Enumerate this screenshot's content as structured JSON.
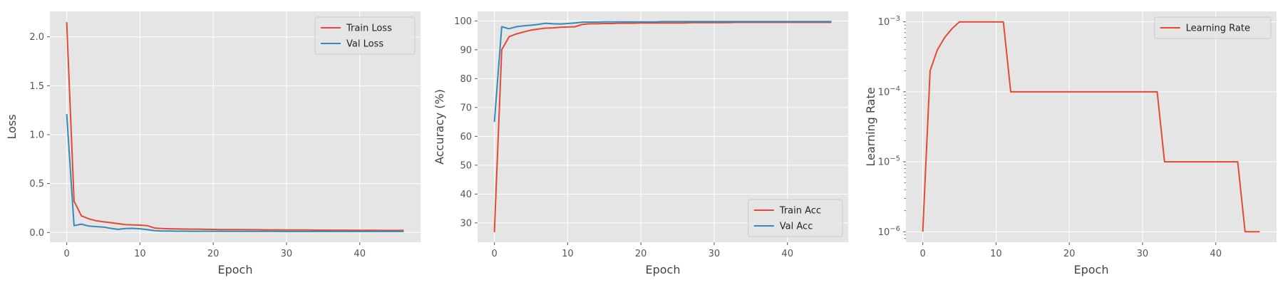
{
  "colors": {
    "red": "#e24a33",
    "blue": "#348abd",
    "plot_bg": "#e5e5e5",
    "grid": "#ffffff"
  },
  "chart_data": [
    {
      "type": "line",
      "xlabel": "Epoch",
      "ylabel": "Loss",
      "xlim": [
        -2.3,
        48.3
      ],
      "ylim": [
        -0.1,
        2.26
      ],
      "xticks": [
        0,
        10,
        20,
        30,
        40
      ],
      "xtick_labels": [
        "0",
        "10",
        "20",
        "30",
        "40"
      ],
      "yticks": [
        0.0,
        0.5,
        1.0,
        1.5,
        2.0
      ],
      "ytick_labels": [
        "0.0",
        "0.5",
        "1.0",
        "1.5",
        "2.0"
      ],
      "legend_position": "top-right",
      "x": [
        0,
        1,
        2,
        3,
        4,
        5,
        6,
        7,
        8,
        9,
        10,
        11,
        12,
        13,
        14,
        15,
        16,
        17,
        18,
        19,
        20,
        21,
        22,
        23,
        24,
        25,
        26,
        27,
        28,
        29,
        30,
        31,
        32,
        33,
        34,
        35,
        36,
        37,
        38,
        39,
        40,
        41,
        42,
        43,
        44,
        45,
        46
      ],
      "series": [
        {
          "name": "Train Loss",
          "color": "red",
          "values": [
            2.15,
            0.32,
            0.17,
            0.14,
            0.12,
            0.11,
            0.1,
            0.09,
            0.08,
            0.078,
            0.075,
            0.07,
            0.045,
            0.04,
            0.038,
            0.036,
            0.035,
            0.034,
            0.034,
            0.032,
            0.031,
            0.03,
            0.03,
            0.029,
            0.029,
            0.028,
            0.028,
            0.027,
            0.027,
            0.027,
            0.026,
            0.026,
            0.025,
            0.025,
            0.024,
            0.024,
            0.023,
            0.023,
            0.023,
            0.022,
            0.022,
            0.022,
            0.022,
            0.021,
            0.021,
            0.021,
            0.021
          ]
        },
        {
          "name": "Val Loss",
          "color": "blue",
          "values": [
            1.21,
            0.07,
            0.085,
            0.065,
            0.06,
            0.055,
            0.042,
            0.032,
            0.04,
            0.042,
            0.038,
            0.03,
            0.018,
            0.015,
            0.014,
            0.013,
            0.013,
            0.012,
            0.012,
            0.012,
            0.012,
            0.012,
            0.011,
            0.011,
            0.011,
            0.011,
            0.011,
            0.011,
            0.011,
            0.01,
            0.01,
            0.01,
            0.01,
            0.01,
            0.01,
            0.01,
            0.01,
            0.01,
            0.01,
            0.01,
            0.01,
            0.01,
            0.01,
            0.01,
            0.01,
            0.01,
            0.01
          ]
        }
      ]
    },
    {
      "type": "line",
      "xlabel": "Epoch",
      "ylabel": "Accuracy (%)",
      "xlim": [
        -2.3,
        48.3
      ],
      "ylim": [
        23.3,
        103.3
      ],
      "xticks": [
        0,
        10,
        20,
        30,
        40
      ],
      "xtick_labels": [
        "0",
        "10",
        "20",
        "30",
        "40"
      ],
      "yticks": [
        30,
        40,
        50,
        60,
        70,
        80,
        90,
        100
      ],
      "ytick_labels": [
        "30",
        "40",
        "50",
        "60",
        "70",
        "80",
        "90",
        "100"
      ],
      "legend_position": "bottom-right",
      "x": [
        0,
        1,
        2,
        3,
        4,
        5,
        6,
        7,
        8,
        9,
        10,
        11,
        12,
        13,
        14,
        15,
        16,
        17,
        18,
        19,
        20,
        21,
        22,
        23,
        24,
        25,
        26,
        27,
        28,
        29,
        30,
        31,
        32,
        33,
        34,
        35,
        36,
        37,
        38,
        39,
        40,
        41,
        42,
        43,
        44,
        45,
        46
      ],
      "series": [
        {
          "name": "Train Acc",
          "color": "red",
          "values": [
            26.8,
            90.0,
            94.5,
            95.5,
            96.2,
            96.8,
            97.2,
            97.5,
            97.6,
            97.8,
            97.9,
            98.0,
            98.8,
            99.0,
            99.0,
            99.1,
            99.1,
            99.2,
            99.2,
            99.2,
            99.3,
            99.3,
            99.3,
            99.3,
            99.3,
            99.3,
            99.3,
            99.4,
            99.4,
            99.4,
            99.4,
            99.4,
            99.4,
            99.5,
            99.5,
            99.5,
            99.5,
            99.5,
            99.5,
            99.5,
            99.5,
            99.5,
            99.5,
            99.5,
            99.5,
            99.5,
            99.5
          ]
        },
        {
          "name": "Val Acc",
          "color": "blue",
          "values": [
            65.0,
            98.0,
            97.3,
            98.0,
            98.3,
            98.5,
            98.8,
            99.2,
            99.0,
            98.9,
            99.1,
            99.3,
            99.6,
            99.6,
            99.6,
            99.7,
            99.7,
            99.7,
            99.7,
            99.7,
            99.7,
            99.7,
            99.7,
            99.8,
            99.8,
            99.8,
            99.8,
            99.8,
            99.8,
            99.8,
            99.8,
            99.8,
            99.8,
            99.8,
            99.8,
            99.8,
            99.8,
            99.8,
            99.8,
            99.8,
            99.8,
            99.8,
            99.8,
            99.8,
            99.8,
            99.8,
            99.8
          ]
        }
      ]
    },
    {
      "type": "line",
      "yscale": "log",
      "xlabel": "Epoch",
      "ylabel": "Learning Rate",
      "xlim": [
        -2.3,
        48.3
      ],
      "ylim": [
        7.08e-07,
        0.00141
      ],
      "xticks": [
        0,
        10,
        20,
        30,
        40
      ],
      "xtick_labels": [
        "0",
        "10",
        "20",
        "30",
        "40"
      ],
      "ytick_exponents": [
        -6,
        -5,
        -4,
        -3
      ],
      "ytick_base": "10",
      "legend_position": "top-right",
      "x": [
        0,
        1,
        2,
        3,
        4,
        5,
        6,
        7,
        8,
        9,
        10,
        11,
        12,
        13,
        14,
        15,
        16,
        17,
        18,
        19,
        20,
        21,
        22,
        23,
        24,
        25,
        26,
        27,
        28,
        29,
        30,
        31,
        32,
        33,
        34,
        35,
        36,
        37,
        38,
        39,
        40,
        41,
        42,
        43,
        44,
        45,
        46
      ],
      "series": [
        {
          "name": "Learning Rate",
          "color": "red",
          "values": [
            1e-06,
            0.0002,
            0.0004,
            0.0006,
            0.0008,
            0.001,
            0.001,
            0.001,
            0.001,
            0.001,
            0.001,
            0.001,
            0.0001,
            0.0001,
            0.0001,
            0.0001,
            0.0001,
            0.0001,
            0.0001,
            0.0001,
            0.0001,
            0.0001,
            0.0001,
            0.0001,
            0.0001,
            0.0001,
            0.0001,
            0.0001,
            0.0001,
            0.0001,
            0.0001,
            0.0001,
            0.0001,
            1e-05,
            1e-05,
            1e-05,
            1e-05,
            1e-05,
            1e-05,
            1e-05,
            1e-05,
            1e-05,
            1e-05,
            1e-05,
            1e-06,
            1e-06,
            1e-06
          ]
        }
      ]
    }
  ]
}
